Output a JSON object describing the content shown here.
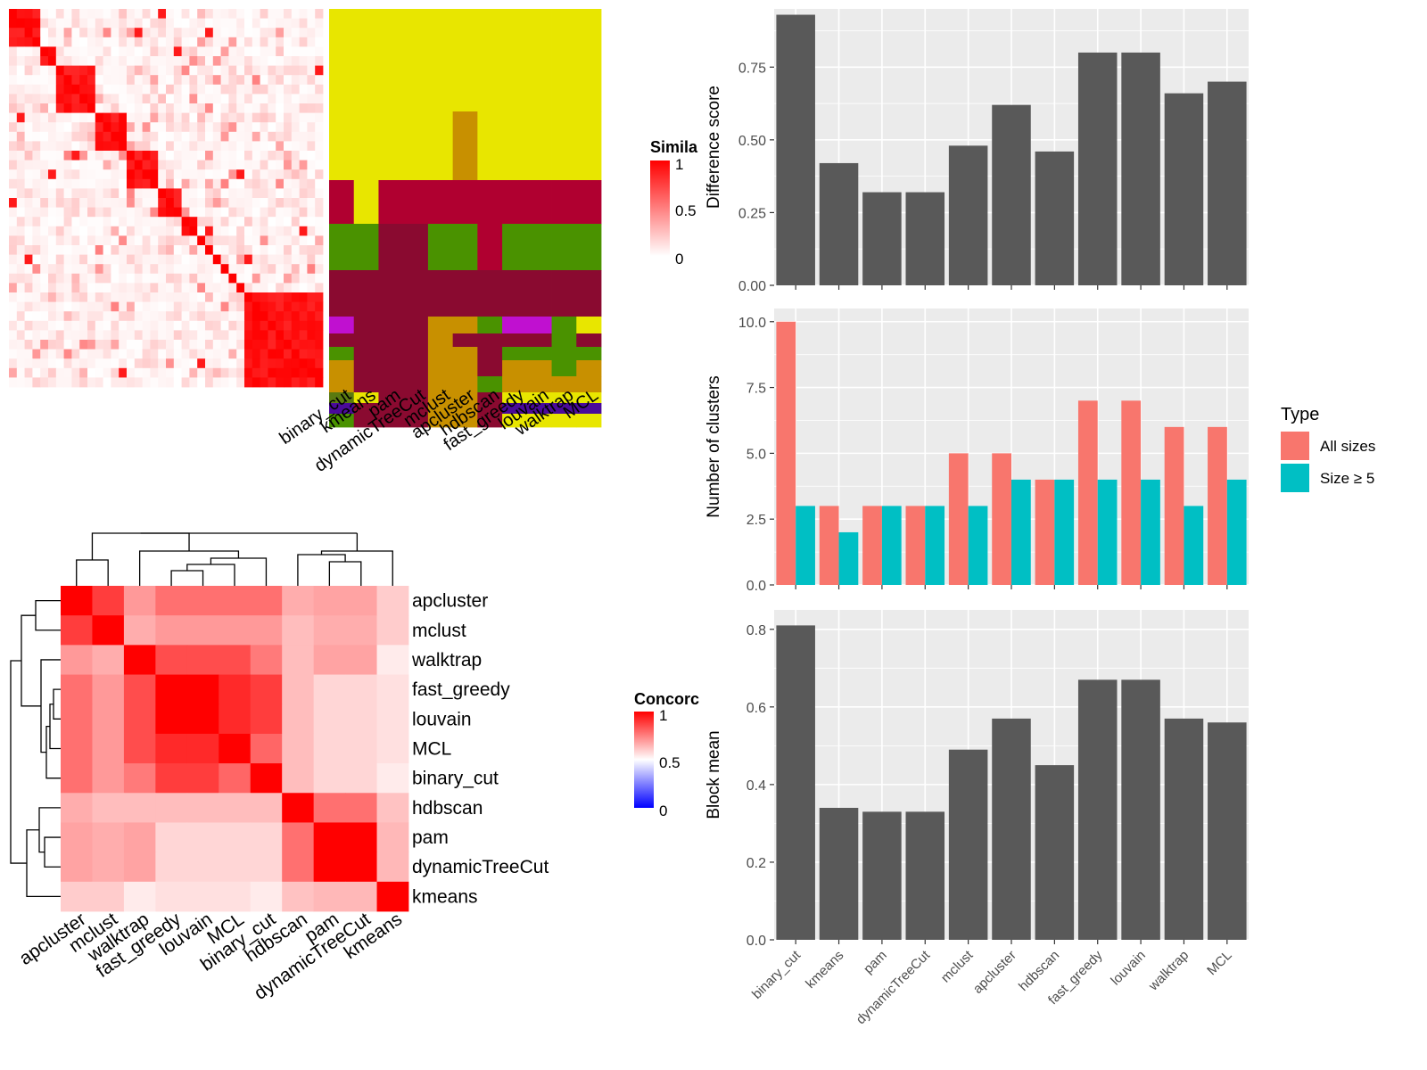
{
  "methods": [
    "binary_cut",
    "kmeans",
    "pam",
    "dynamicTreeCut",
    "mclust",
    "apcluster",
    "hdbscan",
    "fast_greedy",
    "louvain",
    "walktrap",
    "MCL"
  ],
  "colors": {
    "heat_high": "#FF0000",
    "heat_low": "#FFFFFF",
    "concord_low": "#0000FF",
    "bar_gray": "#595959",
    "panel_bg": "#EBEBEB",
    "all_sizes": "#F8766D",
    "size_ge5": "#00BFC4",
    "yellow": "#E8E600",
    "crimson": "#B00030",
    "dark_crimson": "#8A0A30",
    "green": "#4A9200",
    "purple": "#C010D0",
    "ochre": "#C89000",
    "olive": "#5A7A10",
    "indigo": "#4A0A9A"
  },
  "similarity_heatmap": {
    "legend_title": "Simila",
    "legend_ticks": [
      "1",
      "0.5",
      "0"
    ],
    "block_sizes": [
      4,
      2,
      5,
      4,
      4,
      3,
      2,
      1,
      1,
      1,
      1,
      1,
      1,
      1
    ],
    "cluster_codes": [
      [
        "yellow",
        "yellow",
        "yellow",
        "yellow",
        "yellow",
        "yellow",
        "yellow",
        "yellow",
        "yellow",
        "yellow",
        "yellow"
      ],
      [
        "yellow",
        "yellow",
        "yellow",
        "yellow",
        "yellow",
        "ochre",
        "yellow",
        "yellow",
        "yellow",
        "yellow",
        "yellow"
      ],
      [
        "crimson",
        "yellow",
        "crimson",
        "crimson",
        "crimson",
        "crimson",
        "crimson",
        "crimson",
        "crimson",
        "crimson",
        "crimson"
      ],
      [
        "green",
        "green",
        "dark_crimson",
        "dark_crimson",
        "green",
        "green",
        "crimson",
        "green",
        "green",
        "green",
        "green"
      ],
      [
        "dark_crimson",
        "dark_crimson",
        "dark_crimson",
        "dark_crimson",
        "dark_crimson",
        "dark_crimson",
        "dark_crimson",
        "dark_crimson",
        "dark_crimson",
        "dark_crimson",
        "dark_crimson"
      ],
      [
        "purple",
        "dark_crimson",
        "dark_crimson",
        "dark_crimson",
        "ochre",
        "ochre",
        "green",
        "purple",
        "purple",
        "green",
        "yellow"
      ],
      [
        "dark_crimson",
        "dark_crimson",
        "dark_crimson",
        "dark_crimson",
        "ochre",
        "dark_crimson",
        "dark_crimson",
        "dark_crimson",
        "dark_crimson",
        "green",
        "dark_crimson"
      ],
      [
        "green",
        "dark_crimson",
        "dark_crimson",
        "dark_crimson",
        "ochre",
        "ochre",
        "dark_crimson",
        "green",
        "green",
        "green",
        "green"
      ],
      [
        "ochre",
        "dark_crimson",
        "dark_crimson",
        "dark_crimson",
        "ochre",
        "ochre",
        "dark_crimson",
        "ochre",
        "ochre",
        "green",
        "ochre"
      ],
      [
        "ochre",
        "dark_crimson",
        "dark_crimson",
        "dark_crimson",
        "ochre",
        "ochre",
        "green",
        "ochre",
        "ochre",
        "ochre",
        "ochre"
      ],
      [
        "olive",
        "yellow",
        "dark_crimson",
        "dark_crimson",
        "ochre",
        "ochre",
        "dark_crimson",
        "yellow",
        "yellow",
        "yellow",
        "yellow"
      ],
      [
        "indigo",
        "dark_crimson",
        "dark_crimson",
        "dark_crimson",
        "ochre",
        "ochre",
        "dark_crimson",
        "indigo",
        "indigo",
        "indigo",
        "indigo"
      ],
      [
        "green",
        "dark_crimson",
        "dark_crimson",
        "dark_crimson",
        "ochre",
        "ochre",
        "dark_crimson",
        "yellow",
        "yellow",
        "yellow",
        "yellow"
      ]
    ]
  },
  "chart_data": [
    {
      "type": "bar",
      "ylabel": "Difference score",
      "categories": [
        "binary_cut",
        "kmeans",
        "pam",
        "dynamicTreeCut",
        "mclust",
        "apcluster",
        "hdbscan",
        "fast_greedy",
        "louvain",
        "walktrap",
        "MCL"
      ],
      "values": [
        0.93,
        0.42,
        0.32,
        0.32,
        0.48,
        0.62,
        0.46,
        0.8,
        0.8,
        0.66,
        0.7
      ],
      "ylim": [
        0,
        0.95
      ],
      "yticks": [
        0,
        0.25,
        0.5,
        0.75
      ],
      "ytick_labels": [
        "0.00",
        "0.25",
        "0.50",
        "0.75"
      ]
    },
    {
      "type": "bar",
      "ylabel": "Number of clusters",
      "categories": [
        "binary_cut",
        "kmeans",
        "pam",
        "dynamicTreeCut",
        "mclust",
        "apcluster",
        "hdbscan",
        "fast_greedy",
        "louvain",
        "walktrap",
        "MCL"
      ],
      "series": [
        {
          "name": "All sizes",
          "values": [
            10,
            3,
            3,
            3,
            5,
            5,
            4,
            7,
            7,
            6,
            6
          ]
        },
        {
          "name": "Size ≥ 5",
          "values": [
            3,
            2,
            3,
            3,
            3,
            4,
            4,
            4,
            4,
            3,
            4
          ]
        }
      ],
      "ylim": [
        0,
        10.5
      ],
      "yticks": [
        0,
        2.5,
        5,
        7.5,
        10
      ],
      "ytick_labels": [
        "0.0",
        "2.5",
        "5.0",
        "7.5",
        "10.0"
      ],
      "legend": {
        "title": "Type",
        "position": "right"
      }
    },
    {
      "type": "bar",
      "ylabel": "Block mean",
      "categories": [
        "binary_cut",
        "kmeans",
        "pam",
        "dynamicTreeCut",
        "mclust",
        "apcluster",
        "hdbscan",
        "fast_greedy",
        "louvain",
        "walktrap",
        "MCL"
      ],
      "values": [
        0.81,
        0.34,
        0.33,
        0.33,
        0.49,
        0.57,
        0.45,
        0.67,
        0.67,
        0.57,
        0.56
      ],
      "ylim": [
        0,
        0.85
      ],
      "yticks": [
        0,
        0.2,
        0.4,
        0.6,
        0.8
      ],
      "ytick_labels": [
        "0.0",
        "0.2",
        "0.4",
        "0.6",
        "0.8"
      ]
    },
    {
      "type": "heatmap",
      "legend_title": "Concorc",
      "legend_ticks": [
        "1",
        "0.5",
        "0"
      ],
      "labels": [
        "apcluster",
        "mclust",
        "walktrap",
        "fast_greedy",
        "louvain",
        "MCL",
        "binary_cut",
        "hdbscan",
        "pam",
        "dynamicTreeCut",
        "kmeans"
      ],
      "matrix": [
        [
          1.0,
          0.88,
          0.7,
          0.78,
          0.78,
          0.78,
          0.78,
          0.66,
          0.68,
          0.68,
          0.6
        ],
        [
          0.88,
          1.0,
          0.66,
          0.7,
          0.7,
          0.7,
          0.7,
          0.63,
          0.66,
          0.66,
          0.6
        ],
        [
          0.7,
          0.66,
          1.0,
          0.85,
          0.85,
          0.85,
          0.76,
          0.63,
          0.68,
          0.68,
          0.54
        ],
        [
          0.78,
          0.7,
          0.85,
          1.0,
          1.0,
          0.92,
          0.88,
          0.63,
          0.58,
          0.58,
          0.56
        ],
        [
          0.78,
          0.7,
          0.85,
          1.0,
          1.0,
          0.92,
          0.88,
          0.63,
          0.58,
          0.58,
          0.56
        ],
        [
          0.78,
          0.7,
          0.85,
          0.92,
          0.92,
          1.0,
          0.8,
          0.63,
          0.58,
          0.58,
          0.56
        ],
        [
          0.78,
          0.7,
          0.76,
          0.88,
          0.88,
          0.8,
          1.0,
          0.63,
          0.58,
          0.58,
          0.54
        ],
        [
          0.66,
          0.63,
          0.63,
          0.63,
          0.63,
          0.63,
          0.63,
          1.0,
          0.78,
          0.78,
          0.62
        ],
        [
          0.68,
          0.66,
          0.68,
          0.58,
          0.58,
          0.58,
          0.58,
          0.78,
          1.0,
          1.0,
          0.64
        ],
        [
          0.68,
          0.66,
          0.68,
          0.58,
          0.58,
          0.58,
          0.58,
          0.78,
          1.0,
          1.0,
          0.64
        ],
        [
          0.6,
          0.6,
          0.54,
          0.56,
          0.56,
          0.56,
          0.54,
          0.62,
          0.64,
          0.64,
          1.0
        ]
      ]
    }
  ],
  "legend_type": {
    "title": "Type",
    "items": [
      {
        "label": "All sizes",
        "color": "#F8766D"
      },
      {
        "label": "Size ≥ 5",
        "color": "#00BFC4"
      }
    ]
  }
}
